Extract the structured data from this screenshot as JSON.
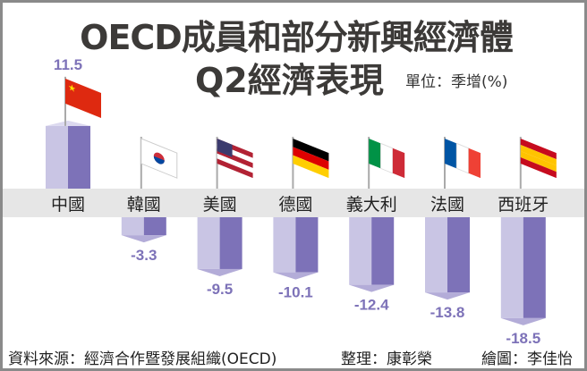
{
  "title_line1": "OECD成員和部分新興經濟體",
  "title_line2": "Q2經濟表現",
  "unit": "單位：季增(%)",
  "source": "資料來源：經濟合作暨發展組織(OECD)",
  "compiled_by": "整理：康彰榮",
  "drawn_by": "繪圖：李佳怡",
  "colors": {
    "bar_light": "#c9c5e4",
    "bar_dark": "#7d72b8",
    "label": "#7d72b8",
    "band": "#e6e6e6"
  },
  "chart_data": {
    "type": "bar",
    "title": "OECD成員和部分新興經濟體Q2經濟表現",
    "ylabel": "單位：季增(%)",
    "categories": [
      "中國",
      "韓國",
      "美國",
      "德國",
      "義大利",
      "法國",
      "西班牙"
    ],
    "flags": [
      "china-flag",
      "south-korea-flag",
      "usa-flag",
      "germany-flag",
      "italy-flag",
      "france-flag",
      "spain-flag"
    ],
    "values": [
      11.5,
      -3.3,
      -9.5,
      -10.1,
      -12.4,
      -13.8,
      -18.5
    ],
    "value_labels": [
      "11.5",
      "-3.3",
      "-9.5",
      "-10.1",
      "-12.4",
      "-13.8",
      "-18.5"
    ],
    "grid": false
  }
}
